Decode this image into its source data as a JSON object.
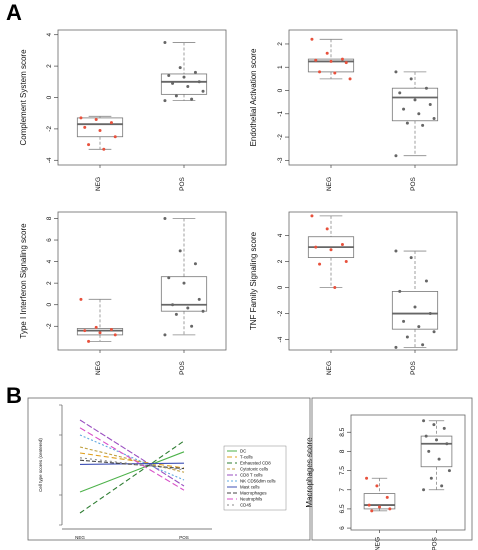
{
  "panel_labels": {
    "a": "A",
    "b": "B"
  },
  "colors": {
    "neg_point": "#e8513c",
    "pos_point": "#666666",
    "box_fill": "#ffffff",
    "box_stroke": "#777777",
    "median": "#666666",
    "panel_border": "#666666"
  },
  "chart_data": [
    {
      "type": "box",
      "ylabel": "Complement System score",
      "categories": [
        "NEG",
        "POS"
      ],
      "yticks": [
        -4,
        -2,
        0,
        2,
        4
      ],
      "ylim": [
        -4.3,
        4.3
      ],
      "boxes": [
        {
          "whisker_low": -3.3,
          "q1": -2.5,
          "median": -1.7,
          "q3": -1.3,
          "whisker_high": -1.2,
          "points": [
            -1.3,
            -1.4,
            -1.6,
            -1.9,
            -2.1,
            -2.5,
            -3.0,
            -3.3
          ]
        },
        {
          "whisker_low": -0.2,
          "q1": 0.2,
          "median": 1.0,
          "q3": 1.5,
          "whisker_high": 3.5,
          "points": [
            3.5,
            1.9,
            1.6,
            1.4,
            1.3,
            1.0,
            0.9,
            0.7,
            0.4,
            0.1,
            -0.1,
            -0.2
          ]
        }
      ]
    },
    {
      "type": "box",
      "ylabel": "Endothelial Activation score",
      "categories": [
        "NEG",
        "POS"
      ],
      "yticks": [
        -3,
        -2,
        -1,
        0,
        1,
        2
      ],
      "ylim": [
        -3.2,
        2.6
      ],
      "boxes": [
        {
          "whisker_low": 0.5,
          "q1": 0.8,
          "median": 1.25,
          "q3": 1.35,
          "whisker_high": 2.2,
          "points": [
            2.2,
            1.6,
            1.35,
            1.3,
            1.25,
            1.2,
            0.8,
            0.75,
            0.5
          ]
        },
        {
          "whisker_low": -2.8,
          "q1": -1.3,
          "median": -0.3,
          "q3": 0.1,
          "whisker_high": 0.8,
          "points": [
            0.8,
            0.5,
            0.1,
            -0.1,
            -0.4,
            -0.6,
            -0.8,
            -1.0,
            -1.2,
            -1.4,
            -1.5,
            -2.8
          ]
        }
      ]
    },
    {
      "type": "box",
      "ylabel": "Type I Interferon Signaling score",
      "categories": [
        "NEG",
        "POS"
      ],
      "yticks": [
        -2,
        0,
        2,
        4,
        6,
        8
      ],
      "ylim": [
        -4.2,
        8.6
      ],
      "boxes": [
        {
          "whisker_low": -3.4,
          "q1": -2.8,
          "median": -2.4,
          "q3": -2.2,
          "whisker_high": 0.5,
          "points": [
            0.5,
            -2.1,
            -2.3,
            -2.4,
            -2.6,
            -2.8,
            -3.4
          ]
        },
        {
          "whisker_low": -2.8,
          "q1": -0.6,
          "median": 0.0,
          "q3": 2.6,
          "whisker_high": 8.0,
          "points": [
            8.0,
            5.0,
            3.8,
            2.5,
            2.0,
            0.5,
            0.0,
            -0.3,
            -0.6,
            -0.9,
            -2.0,
            -2.8
          ]
        }
      ]
    },
    {
      "type": "box",
      "ylabel": "TNF Family Signaling score",
      "categories": [
        "NEG",
        "POS"
      ],
      "yticks": [
        -4,
        -2,
        0,
        2,
        4
      ],
      "ylim": [
        -4.8,
        5.8
      ],
      "boxes": [
        {
          "whisker_low": 0.0,
          "q1": 2.3,
          "median": 3.1,
          "q3": 3.9,
          "whisker_high": 5.5,
          "points": [
            5.5,
            4.5,
            3.3,
            3.1,
            2.9,
            2.0,
            1.8,
            0.0
          ]
        },
        {
          "whisker_low": -4.6,
          "q1": -3.2,
          "median": -2.0,
          "q3": -0.3,
          "whisker_high": 2.8,
          "points": [
            2.8,
            2.3,
            0.5,
            -0.3,
            -1.5,
            -2.0,
            -2.6,
            -3.0,
            -3.4,
            -3.8,
            -4.4,
            -4.6
          ]
        }
      ]
    },
    {
      "type": "line",
      "ylabel": "Cell type scores (centered)",
      "categories": [
        "NEG",
        "POS"
      ],
      "ylim": [
        -1,
        1
      ],
      "series": [
        {
          "name": "DC",
          "color": "#4db24a",
          "dash": "0",
          "values": [
            -0.45,
            0.22
          ]
        },
        {
          "name": "T-cells",
          "color": "#e0a020",
          "dash": "5,3",
          "values": [
            0.2,
            -0.05
          ]
        },
        {
          "name": "Exhausted CD8",
          "color": "#2e7d32",
          "dash": "5,3",
          "values": [
            -0.8,
            0.4
          ]
        },
        {
          "name": "Cytotoxic cells",
          "color": "#c0a040",
          "dash": "3,2",
          "values": [
            0.3,
            -0.12
          ]
        },
        {
          "name": "CD8 T cells",
          "color": "#9a4fc0",
          "dash": "6,2",
          "values": [
            0.75,
            -0.35
          ]
        },
        {
          "name": "NK CD56dim cells",
          "color": "#5fa8e0",
          "dash": "2,2",
          "values": [
            0.5,
            -0.25
          ]
        },
        {
          "name": "Mast cells",
          "color": "#3f51b5",
          "dash": "0",
          "values": [
            0.01,
            0.03
          ]
        },
        {
          "name": "Macrophages",
          "color": "#444444",
          "dash": "4,2",
          "values": [
            0.08,
            -0.06
          ]
        },
        {
          "name": "Neutrophils",
          "color": "#d84fc8",
          "dash": "6,3",
          "values": [
            0.62,
            -0.42
          ]
        },
        {
          "name": "CD45",
          "color": "#8a8a8a",
          "dash": "2,3",
          "values": [
            0.12,
            -0.08
          ]
        }
      ]
    },
    {
      "type": "box",
      "ylabel": "Macrophages score",
      "categories": [
        "NEG",
        "POS"
      ],
      "yticks": [
        6.0,
        6.5,
        7.0,
        7.5,
        8.0,
        8.5
      ],
      "ylim": [
        5.95,
        8.95
      ],
      "boxes": [
        {
          "whisker_low": 6.45,
          "q1": 6.5,
          "median": 6.6,
          "q3": 6.9,
          "whisker_high": 7.3,
          "points": [
            7.3,
            7.1,
            6.8,
            6.6,
            6.55,
            6.5,
            6.45
          ]
        },
        {
          "whisker_low": 7.0,
          "q1": 7.6,
          "median": 8.2,
          "q3": 8.4,
          "whisker_high": 8.8,
          "points": [
            8.8,
            8.7,
            8.6,
            8.4,
            8.3,
            8.2,
            8.0,
            7.8,
            7.5,
            7.3,
            7.1,
            7.0
          ]
        }
      ]
    }
  ]
}
